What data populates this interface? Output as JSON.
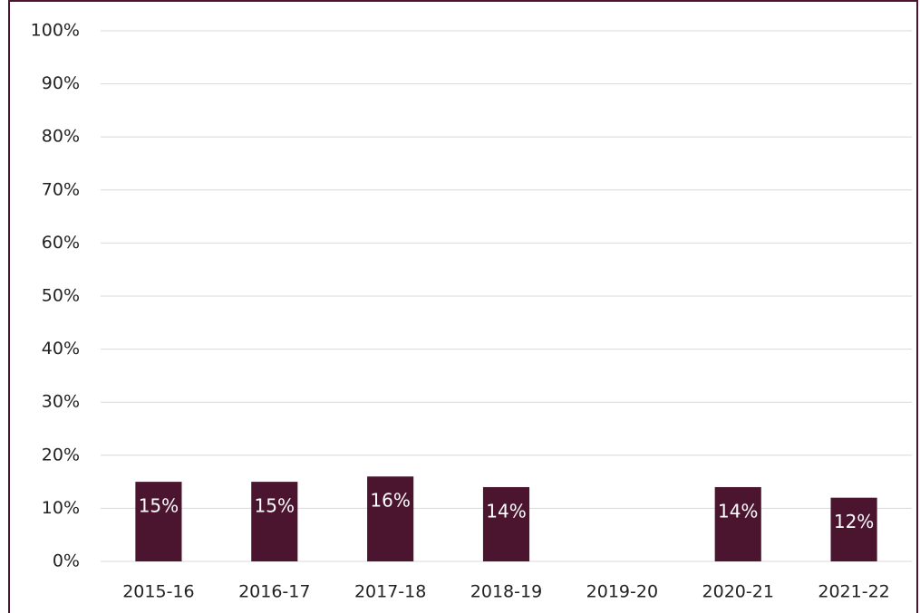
{
  "chart_data": {
    "type": "bar",
    "categories": [
      "2015-16",
      "2016-17",
      "2017-18",
      "2018-19",
      "2019-20",
      "2020-21",
      "2021-22"
    ],
    "values": [
      15,
      15,
      16,
      14,
      null,
      14,
      12
    ],
    "value_labels": [
      "15%",
      "15%",
      "16%",
      "14%",
      null,
      "14%",
      "12%"
    ],
    "color": "#4b1530",
    "ylim": [
      0,
      100
    ],
    "yticks": [
      {
        "value": 0,
        "label": "0%"
      },
      {
        "value": 10,
        "label": "10%"
      },
      {
        "value": 20,
        "label": "20%"
      },
      {
        "value": 30,
        "label": "30%"
      },
      {
        "value": 40,
        "label": "40%"
      },
      {
        "value": 50,
        "label": "50%"
      },
      {
        "value": 60,
        "label": "60%"
      },
      {
        "value": 70,
        "label": "70%"
      },
      {
        "value": 80,
        "label": "80%"
      },
      {
        "value": 90,
        "label": "90%"
      },
      {
        "value": 100,
        "label": "100%"
      }
    ],
    "grid": true
  }
}
